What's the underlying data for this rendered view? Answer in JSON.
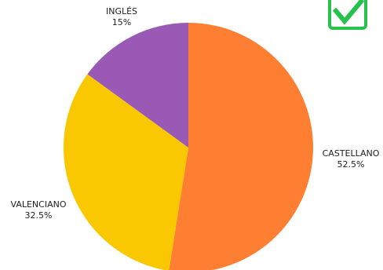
{
  "chart_data": {
    "type": "pie",
    "slices": [
      {
        "label": "CASTELLANO",
        "value": 52.5,
        "value_label": "52.5%",
        "color": "#ff7f32"
      },
      {
        "label": "VALENCIANO",
        "value": 32.5,
        "value_label": "32.5%",
        "color": "#f9c800"
      },
      {
        "label": "INGLÉS",
        "value": 15,
        "value_label": "15%",
        "color": "#9b59b6"
      }
    ],
    "start_angle": "12 o'clock",
    "direction": "clockwise",
    "legend": "none"
  },
  "badge": {
    "icon": "check-icon",
    "color": "#27c24c"
  }
}
